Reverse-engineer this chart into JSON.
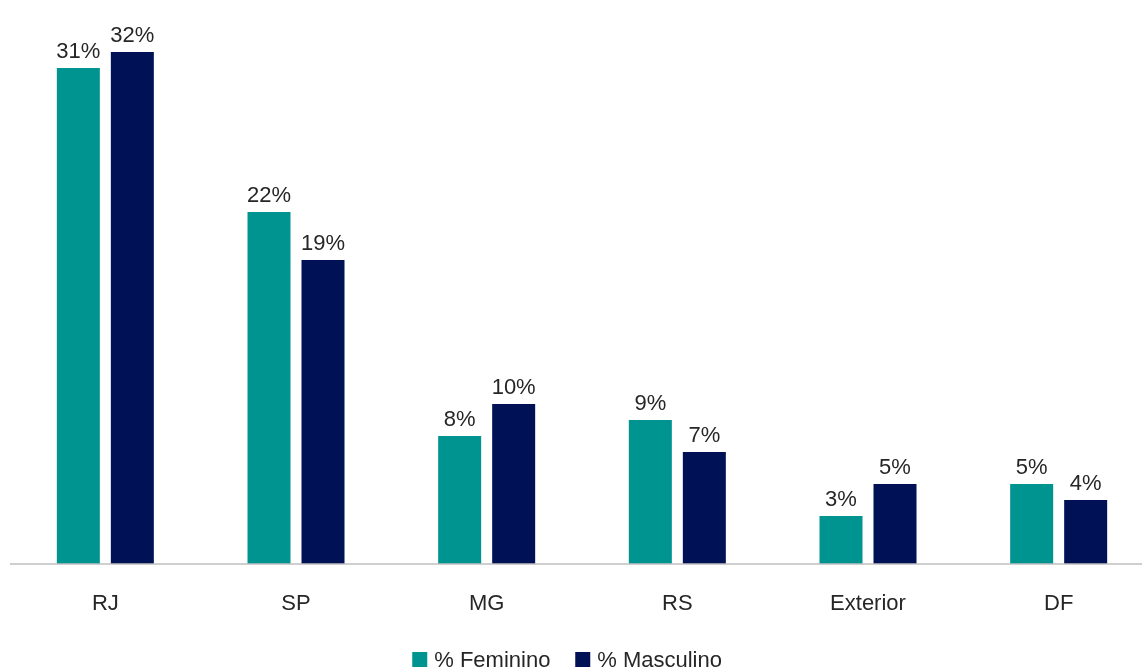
{
  "chart_data": {
    "type": "bar",
    "categories": [
      "RJ",
      "SP",
      "MG",
      "RS",
      "Exterior",
      "DF"
    ],
    "series": [
      {
        "name": "% Feminino",
        "color": "#009490",
        "values": [
          31,
          22,
          8,
          9,
          3,
          5
        ],
        "value_labels": [
          "31%",
          "22%",
          "8%",
          "9%",
          "3%",
          "5%"
        ]
      },
      {
        "name": "% Masculino",
        "color": "#001255",
        "values": [
          32,
          19,
          10,
          7,
          5,
          4
        ],
        "value_labels": [
          "32%",
          "19%",
          "10%",
          "7%",
          "5%",
          "4%"
        ]
      }
    ],
    "legend": "bottom"
  }
}
